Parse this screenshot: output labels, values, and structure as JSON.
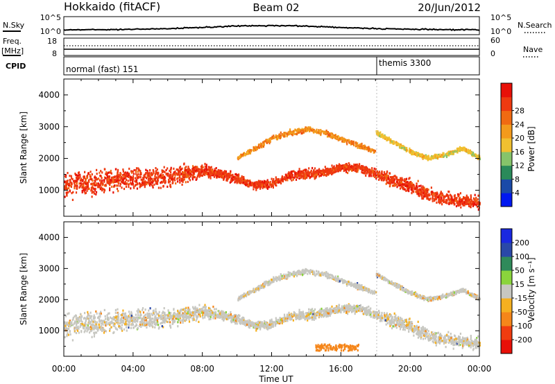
{
  "header": {
    "station": "Hokkaido (fitACF)",
    "beam": "Beam 02",
    "date": "20/Jun/2012"
  },
  "strip_panels": {
    "nsky": {
      "label": "N.Sky",
      "ticks": [
        "10^5",
        "10^0"
      ],
      "right_ticks": [
        "10^5",
        "10^0"
      ],
      "right_label": "N.Search"
    },
    "freq": {
      "label_top": "Freq.",
      "label_bottom": "[MHz]",
      "ticks": [
        "18",
        "8"
      ],
      "right_ticks": [
        "60",
        "0"
      ],
      "right_label": "Nave"
    },
    "cpid": {
      "label": "CPID",
      "segments": [
        {
          "name": "normal (fast) 151",
          "start": "00:00"
        },
        {
          "name": "themis 3300",
          "start": "18:00"
        }
      ]
    }
  },
  "time_axis": {
    "label": "Time UT",
    "ticks": [
      "00:00",
      "04:00",
      "08:00",
      "12:00",
      "16:00",
      "20:00",
      "00:00"
    ]
  },
  "colors": {
    "power": [
      "#0018f0",
      "#1a4aa8",
      "#2a8a5a",
      "#86c46a",
      "#f0c030",
      "#f39a1c",
      "#f06a12",
      "#ee3a10",
      "#e81008"
    ],
    "velocity": [
      "#e81008",
      "#f03c10",
      "#f5861a",
      "#f5b020",
      "#c7c7c1",
      "#8ad43c",
      "#2f8a5a",
      "#2a48a8",
      "#1a28e0"
    ],
    "ground_scatter": "#c7c7c1"
  },
  "chart_data": [
    {
      "type": "heatmap",
      "panel": "power",
      "ylabel": "Slant Range [km]",
      "ylim": [
        180,
        4500
      ],
      "yticks": [
        1000,
        2000,
        3000,
        4000
      ],
      "xlim": [
        0,
        24
      ],
      "colorbar": {
        "label": "Power [dB]",
        "ticks": [
          4,
          8,
          12,
          16,
          20,
          24,
          28
        ],
        "range": [
          0,
          32
        ]
      },
      "bands": [
        {
          "t": [
            0,
            2,
            4,
            6,
            8,
            9,
            10,
            11,
            12,
            13,
            14,
            15,
            16,
            17,
            18,
            19,
            20,
            21,
            22,
            23,
            24
          ],
          "center": [
            1150,
            1250,
            1350,
            1400,
            1600,
            1500,
            1350,
            1150,
            1200,
            1450,
            1500,
            1550,
            1700,
            1700,
            1500,
            1300,
            1100,
            850,
            700,
            650,
            600
          ],
          "width": [
            900,
            900,
            800,
            700,
            500,
            400,
            400,
            300,
            300,
            300,
            350,
            350,
            300,
            300,
            350,
            500,
            500,
            500,
            500,
            500,
            450
          ],
          "level": 27
        },
        {
          "t": [
            10,
            11,
            12,
            13,
            14,
            15,
            16,
            17,
            18
          ],
          "center": [
            2000,
            2300,
            2600,
            2800,
            2900,
            2800,
            2600,
            2400,
            2200
          ],
          "width": [
            150,
            180,
            200,
            200,
            200,
            200,
            200,
            180,
            150
          ],
          "level": 21
        },
        {
          "t": [
            18,
            19,
            20,
            21,
            22,
            23,
            24
          ],
          "center": [
            2800,
            2500,
            2200,
            2000,
            2100,
            2300,
            2000
          ],
          "width": [
            150,
            150,
            150,
            150,
            150,
            150,
            150
          ],
          "level": 16
        }
      ]
    },
    {
      "type": "heatmap",
      "panel": "velocity",
      "ylabel": "Slant Range [km]",
      "ylim": [
        180,
        4500
      ],
      "yticks": [
        1000,
        2000,
        3000,
        4000
      ],
      "xlim": [
        0,
        24
      ],
      "colorbar": {
        "label": "Velocity [m s⁻¹]",
        "ticks": [
          200,
          100,
          50,
          15,
          -15,
          -50,
          -100,
          -200
        ]
      },
      "bands": [
        {
          "t": [
            0,
            2,
            4,
            6,
            8,
            9,
            10,
            11,
            12,
            13,
            14,
            15,
            16,
            17,
            18,
            19,
            20,
            21,
            22,
            23,
            24
          ],
          "center": [
            1150,
            1250,
            1350,
            1400,
            1600,
            1500,
            1350,
            1150,
            1200,
            1450,
            1500,
            1550,
            1700,
            1700,
            1500,
            1300,
            1100,
            850,
            700,
            650,
            600
          ],
          "width": [
            900,
            900,
            800,
            700,
            500,
            400,
            400,
            300,
            300,
            300,
            350,
            350,
            300,
            300,
            350,
            500,
            500,
            500,
            500,
            500,
            450
          ],
          "level": 0
        },
        {
          "t": [
            10,
            11,
            12,
            13,
            14,
            15,
            16,
            17,
            18
          ],
          "center": [
            2000,
            2300,
            2600,
            2800,
            2900,
            2800,
            2600,
            2400,
            2200
          ],
          "width": [
            150,
            180,
            200,
            200,
            200,
            200,
            200,
            180,
            150
          ],
          "level": 0
        },
        {
          "t": [
            18,
            19,
            20,
            21,
            22,
            23,
            24
          ],
          "center": [
            2800,
            2500,
            2200,
            2000,
            2100,
            2300,
            2000
          ],
          "width": [
            150,
            150,
            150,
            150,
            150,
            150,
            150
          ],
          "level": 0
        }
      ]
    }
  ]
}
